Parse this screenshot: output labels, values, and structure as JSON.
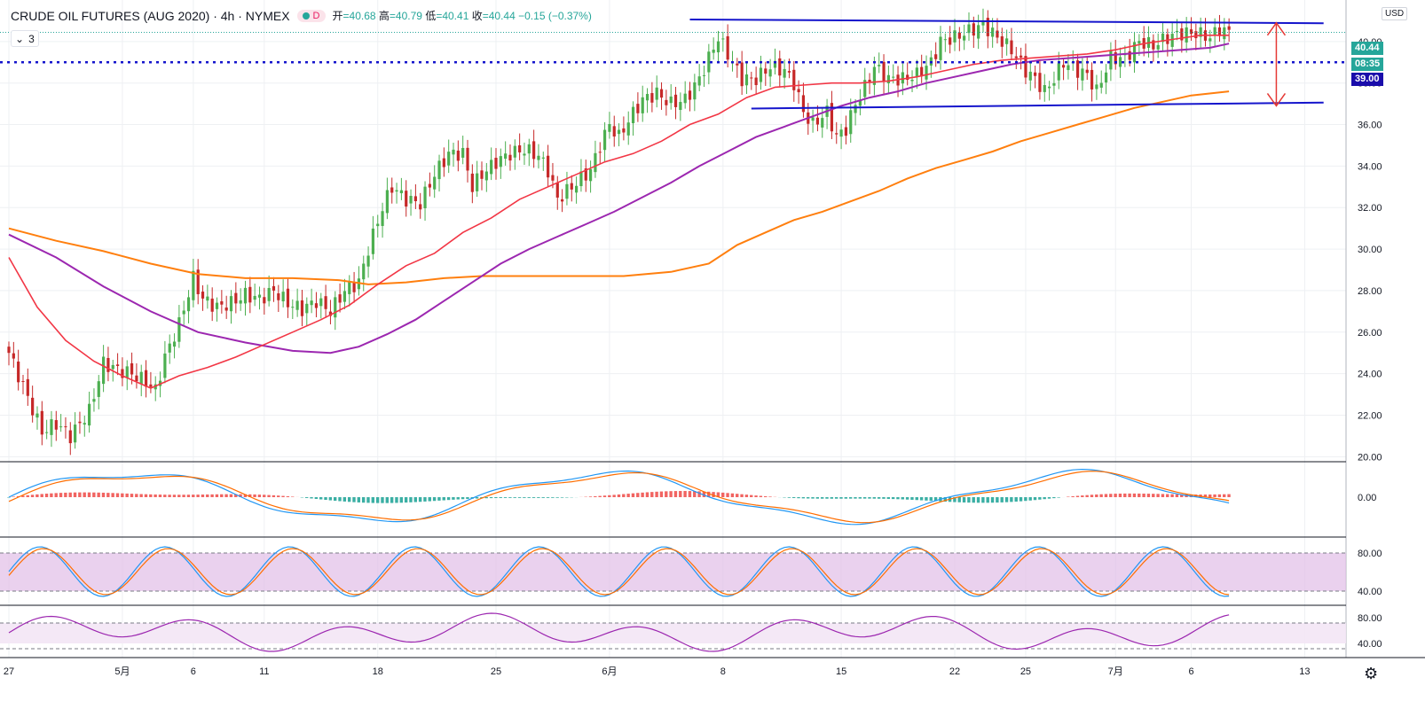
{
  "header": {
    "symbol": "CRUDE OIL FUTURES (AUG 2020) · 4h · NYMEX",
    "badge": "D",
    "open_label": "开",
    "open": "=40.68",
    "high_label": "高",
    "high": "=40.79",
    "low_label": "低",
    "low": "=40.41",
    "close_label": "收",
    "close": "=40.44",
    "change": "−0.15 (−0.37%)",
    "indicators_count": "3"
  },
  "price_axis": {
    "currency": "USD",
    "last_price": "40.44",
    "countdown": "08:35",
    "level_label": "39.00",
    "last_price_color": "#26a69a",
    "countdown_color": "#26a69a",
    "level_color": "#1a0dab"
  },
  "chart_data": {
    "type": "candlestick",
    "price_ticks": [
      "20.00",
      "22.00",
      "24.00",
      "26.00",
      "28.00",
      "30.00",
      "32.00",
      "34.00",
      "36.00",
      "38.00",
      "40.00"
    ],
    "price_range": [
      19.8,
      42.0
    ],
    "x_ticks": [
      {
        "label": "27",
        "bar": 0
      },
      {
        "label": "5月",
        "bar": 24
      },
      {
        "label": "6",
        "bar": 39
      },
      {
        "label": "11",
        "bar": 54
      },
      {
        "label": "18",
        "bar": 78
      },
      {
        "label": "25",
        "bar": 103
      },
      {
        "label": "6月",
        "bar": 127
      },
      {
        "label": "8",
        "bar": 151
      },
      {
        "label": "15",
        "bar": 176
      },
      {
        "label": "22",
        "bar": 200
      },
      {
        "label": "25",
        "bar": 215
      },
      {
        "label": "7月",
        "bar": 234
      },
      {
        "label": "6",
        "bar": 250
      },
      {
        "label": "13",
        "bar": 274
      }
    ],
    "close_waypoints": [
      [
        0,
        25.0
      ],
      [
        3,
        23.4
      ],
      [
        7,
        21.2
      ],
      [
        10,
        21.6
      ],
      [
        13,
        21.0
      ],
      [
        17,
        22.2
      ],
      [
        20,
        24.5
      ],
      [
        23,
        24.2
      ],
      [
        26,
        24.0
      ],
      [
        29,
        23.6
      ],
      [
        31,
        23.2
      ],
      [
        33,
        24.8
      ],
      [
        36,
        26.4
      ],
      [
        39,
        28.6
      ],
      [
        41,
        27.6
      ],
      [
        44,
        27.2
      ],
      [
        47,
        27.4
      ],
      [
        50,
        27.8
      ],
      [
        53,
        27.6
      ],
      [
        56,
        28.0
      ],
      [
        59,
        27.4
      ],
      [
        62,
        27.1
      ],
      [
        65,
        27.5
      ],
      [
        68,
        27.0
      ],
      [
        71,
        28.0
      ],
      [
        74,
        28.4
      ],
      [
        76,
        30.0
      ],
      [
        79,
        32.0
      ],
      [
        81,
        33.0
      ],
      [
        84,
        32.4
      ],
      [
        87,
        32.2
      ],
      [
        90,
        33.6
      ],
      [
        93,
        34.6
      ],
      [
        96,
        34.6
      ],
      [
        98,
        33.0
      ],
      [
        100,
        33.6
      ],
      [
        103,
        34.2
      ],
      [
        106,
        34.6
      ],
      [
        109,
        34.8
      ],
      [
        112,
        34.5
      ],
      [
        114,
        33.8
      ],
      [
        116,
        32.4
      ],
      [
        118,
        32.8
      ],
      [
        121,
        33.4
      ],
      [
        123,
        33.8
      ],
      [
        125,
        35.0
      ],
      [
        127,
        36.0
      ],
      [
        129,
        35.4
      ],
      [
        131,
        36.2
      ],
      [
        134,
        37.2
      ],
      [
        137,
        37.5
      ],
      [
        140,
        37.0
      ],
      [
        143,
        37.2
      ],
      [
        146,
        38.2
      ],
      [
        148,
        39.2
      ],
      [
        150,
        40.2
      ],
      [
        152,
        39.4
      ],
      [
        155,
        38.2
      ],
      [
        158,
        38.2
      ],
      [
        161,
        38.8
      ],
      [
        164,
        38.6
      ],
      [
        166,
        38.0
      ],
      [
        168,
        36.6
      ],
      [
        170,
        36.0
      ],
      [
        173,
        36.6
      ],
      [
        175,
        35.4
      ],
      [
        177,
        35.8
      ],
      [
        179,
        37.0
      ],
      [
        181,
        37.8
      ],
      [
        183,
        38.8
      ],
      [
        186,
        38.2
      ],
      [
        189,
        38.2
      ],
      [
        192,
        38.4
      ],
      [
        195,
        39.0
      ],
      [
        197,
        40.0
      ],
      [
        200,
        40.2
      ],
      [
        203,
        40.5
      ],
      [
        206,
        40.8
      ],
      [
        208,
        40.4
      ],
      [
        210,
        40.0
      ],
      [
        212,
        39.6
      ],
      [
        215,
        38.6
      ],
      [
        217,
        38.2
      ],
      [
        219,
        37.6
      ],
      [
        221,
        38.2
      ],
      [
        223,
        39.0
      ],
      [
        226,
        38.6
      ],
      [
        228,
        38.4
      ],
      [
        230,
        37.6
      ],
      [
        233,
        39.2
      ],
      [
        236,
        39.2
      ],
      [
        239,
        40.0
      ],
      [
        242,
        39.8
      ],
      [
        245,
        40.2
      ],
      [
        248,
        40.4
      ],
      [
        251,
        40.4
      ],
      [
        254,
        40.2
      ],
      [
        256,
        40.6
      ],
      [
        258,
        40.44
      ]
    ],
    "ma_red": [
      [
        0,
        29.6
      ],
      [
        6,
        27.2
      ],
      [
        12,
        25.6
      ],
      [
        18,
        24.6
      ],
      [
        24,
        23.9
      ],
      [
        30,
        23.3
      ],
      [
        36,
        23.9
      ],
      [
        42,
        24.3
      ],
      [
        48,
        24.8
      ],
      [
        54,
        25.4
      ],
      [
        60,
        26.0
      ],
      [
        66,
        26.6
      ],
      [
        72,
        27.3
      ],
      [
        78,
        28.3
      ],
      [
        84,
        29.2
      ],
      [
        90,
        29.8
      ],
      [
        96,
        30.8
      ],
      [
        102,
        31.5
      ],
      [
        108,
        32.4
      ],
      [
        114,
        33.0
      ],
      [
        120,
        33.6
      ],
      [
        126,
        34.2
      ],
      [
        132,
        34.6
      ],
      [
        138,
        35.2
      ],
      [
        144,
        36.0
      ],
      [
        150,
        36.5
      ],
      [
        156,
        37.3
      ],
      [
        162,
        37.8
      ],
      [
        168,
        37.9
      ],
      [
        174,
        38.0
      ],
      [
        180,
        38.0
      ],
      [
        186,
        38.1
      ],
      [
        192,
        38.3
      ],
      [
        198,
        38.6
      ],
      [
        204,
        38.9
      ],
      [
        210,
        39.1
      ],
      [
        216,
        39.2
      ],
      [
        222,
        39.3
      ],
      [
        228,
        39.4
      ],
      [
        234,
        39.6
      ],
      [
        240,
        39.9
      ],
      [
        246,
        40.1
      ],
      [
        252,
        40.3
      ],
      [
        258,
        40.3
      ]
    ],
    "ma_purple": [
      [
        0,
        30.7
      ],
      [
        10,
        29.6
      ],
      [
        20,
        28.2
      ],
      [
        30,
        27.0
      ],
      [
        40,
        26.0
      ],
      [
        50,
        25.5
      ],
      [
        60,
        25.1
      ],
      [
        68,
        25.0
      ],
      [
        74,
        25.3
      ],
      [
        80,
        25.9
      ],
      [
        86,
        26.6
      ],
      [
        92,
        27.5
      ],
      [
        98,
        28.4
      ],
      [
        104,
        29.3
      ],
      [
        110,
        30.0
      ],
      [
        116,
        30.6
      ],
      [
        122,
        31.2
      ],
      [
        128,
        31.8
      ],
      [
        134,
        32.5
      ],
      [
        140,
        33.2
      ],
      [
        146,
        34.0
      ],
      [
        152,
        34.7
      ],
      [
        158,
        35.4
      ],
      [
        164,
        35.9
      ],
      [
        170,
        36.4
      ],
      [
        176,
        36.9
      ],
      [
        182,
        37.3
      ],
      [
        188,
        37.6
      ],
      [
        194,
        38.0
      ],
      [
        200,
        38.3
      ],
      [
        206,
        38.6
      ],
      [
        212,
        38.9
      ],
      [
        218,
        39.1
      ],
      [
        224,
        39.2
      ],
      [
        230,
        39.3
      ],
      [
        236,
        39.4
      ],
      [
        242,
        39.5
      ],
      [
        248,
        39.6
      ],
      [
        254,
        39.7
      ],
      [
        258,
        39.9
      ]
    ],
    "ma_orange": [
      [
        0,
        31.0
      ],
      [
        10,
        30.4
      ],
      [
        20,
        29.9
      ],
      [
        30,
        29.3
      ],
      [
        40,
        28.8
      ],
      [
        50,
        28.6
      ],
      [
        60,
        28.6
      ],
      [
        70,
        28.5
      ],
      [
        76,
        28.3
      ],
      [
        84,
        28.4
      ],
      [
        92,
        28.6
      ],
      [
        100,
        28.7
      ],
      [
        110,
        28.7
      ],
      [
        120,
        28.7
      ],
      [
        130,
        28.7
      ],
      [
        140,
        28.9
      ],
      [
        148,
        29.3
      ],
      [
        154,
        30.2
      ],
      [
        160,
        30.8
      ],
      [
        166,
        31.4
      ],
      [
        172,
        31.8
      ],
      [
        178,
        32.3
      ],
      [
        184,
        32.8
      ],
      [
        190,
        33.4
      ],
      [
        196,
        33.9
      ],
      [
        202,
        34.3
      ],
      [
        208,
        34.7
      ],
      [
        214,
        35.2
      ],
      [
        220,
        35.6
      ],
      [
        226,
        36.0
      ],
      [
        232,
        36.4
      ],
      [
        238,
        36.8
      ],
      [
        244,
        37.1
      ],
      [
        250,
        37.4
      ],
      [
        258,
        37.6
      ]
    ],
    "channel_upper": [
      [
        144,
        41.06
      ],
      [
        278,
        40.88
      ]
    ],
    "channel_lower": [
      [
        157,
        36.77
      ],
      [
        278,
        37.06
      ]
    ],
    "support_level": 39.0,
    "macd_ticks": [
      "0.00"
    ],
    "stoch_ticks": [
      "80.00",
      "40.00"
    ],
    "rsi_ticks": [
      "80.00",
      "40.00"
    ],
    "ma_red_color": "#f23645",
    "ma_purple_color": "#9c27b0",
    "ma_orange_color": "#ff7f0e",
    "channel_color": "#1515cc",
    "up_color": "#4caf50",
    "down_color": "#c62828"
  }
}
